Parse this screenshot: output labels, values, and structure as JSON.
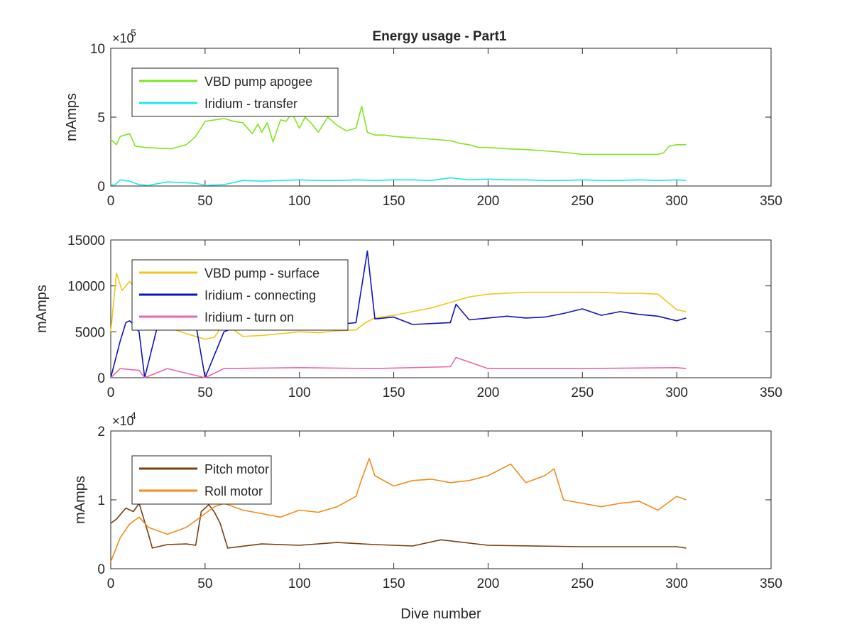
{
  "figure": {
    "title": "Energy usage - Part1",
    "xlabel": "Dive number"
  },
  "chart_data": [
    {
      "type": "line",
      "title": "Energy usage - Part1",
      "xlabel": "",
      "ylabel": "mAmps",
      "xlim": [
        0,
        350
      ],
      "ylim": [
        0,
        1000000
      ],
      "xticks": [
        0,
        50,
        100,
        150,
        200,
        250,
        300,
        350
      ],
      "xtick_labels": [
        "0",
        "50",
        "100",
        "150",
        "200",
        "250",
        "300",
        "350"
      ],
      "yticks": [
        0,
        500000,
        1000000
      ],
      "ytick_labels": [
        "0",
        "5",
        "10"
      ],
      "exponent_label": "×10",
      "exponent_power": "5",
      "legend_position": "top-left",
      "series": [
        {
          "name": "VBD pump apogee",
          "color": "#7fe61f",
          "x": [
            0,
            3,
            5,
            10,
            13,
            18,
            25,
            32,
            40,
            45,
            50,
            55,
            60,
            65,
            70,
            75,
            78,
            80,
            83,
            86,
            90,
            93,
            96,
            100,
            103,
            106,
            110,
            115,
            120,
            125,
            130,
            133,
            136,
            140,
            145,
            150,
            160,
            170,
            180,
            185,
            190,
            195,
            200,
            210,
            220,
            230,
            240,
            250,
            260,
            270,
            280,
            290,
            293,
            296,
            300,
            305
          ],
          "y": [
            340000,
            300000,
            360000,
            380000,
            290000,
            280000,
            275000,
            270000,
            300000,
            360000,
            470000,
            480000,
            490000,
            470000,
            460000,
            380000,
            450000,
            390000,
            460000,
            320000,
            480000,
            470000,
            530000,
            420000,
            500000,
            460000,
            390000,
            500000,
            440000,
            400000,
            420000,
            580000,
            390000,
            370000,
            370000,
            360000,
            350000,
            340000,
            330000,
            310000,
            300000,
            280000,
            280000,
            270000,
            265000,
            255000,
            245000,
            230000,
            230000,
            230000,
            230000,
            230000,
            240000,
            290000,
            300000,
            300000
          ]
        },
        {
          "name": "Iridium - transfer",
          "color": "#1ee6f0",
          "x": [
            0,
            2,
            5,
            10,
            15,
            20,
            30,
            45,
            50,
            60,
            70,
            80,
            90,
            100,
            110,
            120,
            130,
            140,
            150,
            160,
            170,
            180,
            190,
            200,
            210,
            220,
            230,
            240,
            250,
            260,
            270,
            280,
            290,
            300,
            305
          ],
          "y": [
            10000,
            5000,
            45000,
            35000,
            10000,
            5000,
            30000,
            20000,
            5000,
            10000,
            40000,
            35000,
            40000,
            45000,
            40000,
            40000,
            45000,
            40000,
            45000,
            45000,
            40000,
            60000,
            45000,
            50000,
            45000,
            45000,
            40000,
            40000,
            45000,
            40000,
            40000,
            45000,
            40000,
            45000,
            40000
          ]
        }
      ]
    },
    {
      "type": "line",
      "title": "",
      "xlabel": "",
      "ylabel": "mAmps",
      "xlim": [
        0,
        350
      ],
      "ylim": [
        0,
        15000
      ],
      "xticks": [
        0,
        50,
        100,
        150,
        200,
        250,
        300,
        350
      ],
      "xtick_labels": [
        "0",
        "50",
        "100",
        "150",
        "200",
        "250",
        "300",
        "350"
      ],
      "yticks": [
        0,
        5000,
        10000,
        15000
      ],
      "ytick_labels": [
        "0",
        "5000",
        "10000",
        "15000"
      ],
      "legend_position": "top-left",
      "series": [
        {
          "name": "VBD pump - surface",
          "color": "#f5c518",
          "x": [
            0,
            3,
            6,
            10,
            15,
            20,
            30,
            40,
            45,
            50,
            55,
            60,
            70,
            80,
            90,
            100,
            110,
            120,
            130,
            135,
            140,
            150,
            160,
            170,
            180,
            190,
            200,
            210,
            220,
            230,
            240,
            250,
            260,
            270,
            280,
            290,
            300,
            305
          ],
          "y": [
            5000,
            11400,
            9500,
            10500,
            9200,
            8000,
            5500,
            4800,
            4500,
            4200,
            4400,
            6000,
            4500,
            4600,
            4800,
            5000,
            4900,
            5100,
            5200,
            6000,
            6500,
            6800,
            7200,
            7600,
            8200,
            8800,
            9100,
            9200,
            9300,
            9300,
            9300,
            9300,
            9300,
            9200,
            9200,
            9100,
            7400,
            7200
          ]
        },
        {
          "name": "Iridium - connecting",
          "color": "#0d13c2",
          "x": [
            0,
            5,
            8,
            10,
            12,
            15,
            18,
            25,
            35,
            45,
            50,
            60,
            70,
            80,
            90,
            100,
            110,
            120,
            130,
            136,
            140,
            150,
            160,
            170,
            180,
            183,
            190,
            200,
            210,
            220,
            230,
            240,
            250,
            260,
            270,
            280,
            290,
            300,
            305
          ],
          "y": [
            0,
            4000,
            6000,
            6200,
            5800,
            5000,
            0,
            5800,
            6000,
            5900,
            0,
            5000,
            5800,
            5600,
            5800,
            5700,
            5900,
            5800,
            6000,
            13800,
            6400,
            6600,
            5800,
            5900,
            6000,
            8000,
            6300,
            6500,
            6700,
            6500,
            6600,
            7000,
            7500,
            6800,
            7200,
            6900,
            6700,
            6200,
            6500
          ]
        },
        {
          "name": "Iridium - turn on",
          "color": "#e866b0",
          "x": [
            0,
            5,
            10,
            15,
            18,
            30,
            50,
            60,
            100,
            140,
            180,
            183,
            200,
            250,
            300,
            305
          ],
          "y": [
            0,
            1000,
            900,
            800,
            0,
            1000,
            0,
            1000,
            1100,
            1000,
            1200,
            2200,
            1000,
            1000,
            1100,
            1000
          ]
        }
      ]
    },
    {
      "type": "line",
      "title": "",
      "xlabel": "Dive number",
      "ylabel": "mAmps",
      "xlim": [
        0,
        350
      ],
      "ylim": [
        0,
        20000
      ],
      "xticks": [
        0,
        50,
        100,
        150,
        200,
        250,
        300,
        350
      ],
      "xtick_labels": [
        "0",
        "50",
        "100",
        "150",
        "200",
        "250",
        "300",
        "350"
      ],
      "yticks": [
        0,
        10000,
        20000
      ],
      "ytick_labels": [
        "0",
        "1",
        "2"
      ],
      "exponent_label": "×10",
      "exponent_power": "4",
      "legend_position": "top-left",
      "series": [
        {
          "name": "Pitch motor",
          "color": "#7a3f12",
          "x": [
            0,
            3,
            8,
            12,
            15,
            20,
            22,
            30,
            40,
            45,
            48,
            52,
            55,
            58,
            62,
            80,
            100,
            120,
            140,
            160,
            175,
            200,
            250,
            300,
            305
          ],
          "y": [
            6600,
            7200,
            8800,
            8300,
            9500,
            5000,
            3000,
            3500,
            3600,
            3400,
            8300,
            9300,
            8200,
            6600,
            3000,
            3600,
            3400,
            3800,
            3500,
            3300,
            4200,
            3400,
            3200,
            3200,
            3000
          ]
        },
        {
          "name": "Roll motor",
          "color": "#f08c1a",
          "x": [
            0,
            5,
            10,
            15,
            20,
            30,
            40,
            45,
            50,
            55,
            60,
            70,
            80,
            90,
            100,
            110,
            120,
            130,
            133,
            137,
            140,
            150,
            160,
            170,
            180,
            190,
            200,
            212,
            220,
            230,
            235,
            240,
            250,
            260,
            270,
            280,
            290,
            300,
            305
          ],
          "y": [
            1000,
            4500,
            6500,
            7500,
            6000,
            5000,
            6000,
            7000,
            8000,
            9000,
            9500,
            8500,
            8000,
            7500,
            8500,
            8200,
            9000,
            10500,
            13000,
            16000,
            13500,
            12000,
            12800,
            13000,
            12500,
            12800,
            13500,
            15200,
            12500,
            13500,
            14500,
            10000,
            9500,
            9000,
            9500,
            9800,
            8500,
            10500,
            10000
          ]
        }
      ]
    }
  ]
}
